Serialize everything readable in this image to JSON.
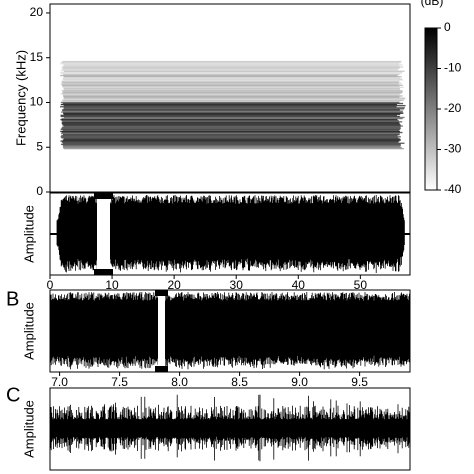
{
  "chart_data": [
    {
      "type": "spectrogram",
      "ylabel": "Frequency (kHz)",
      "ylim": [
        0,
        21
      ],
      "yticks": [
        0,
        5,
        10,
        15,
        20
      ],
      "colorbar": {
        "label": "(dB)",
        "lim": [
          -40,
          0
        ],
        "ticks": [
          0,
          -10,
          -20,
          -30,
          -40
        ]
      }
    },
    {
      "type": "waveform",
      "ylabel": "Amplitude",
      "xlim": [
        0,
        58
      ],
      "xticks": [
        0,
        10,
        20,
        30,
        40,
        50
      ]
    },
    {
      "type": "waveform",
      "panel": "B",
      "ylabel": "Amplitude",
      "xlim": [
        6.92,
        9.92
      ],
      "xticks": [
        {
          "value": 7,
          "label": "7.0"
        },
        7.5,
        {
          "value": 8,
          "label": "8.0"
        },
        8.5,
        {
          "value": 9,
          "label": "9.0"
        },
        9.5
      ]
    },
    {
      "type": "waveform",
      "panel": "C",
      "ylabel": "Amplitude"
    }
  ]
}
